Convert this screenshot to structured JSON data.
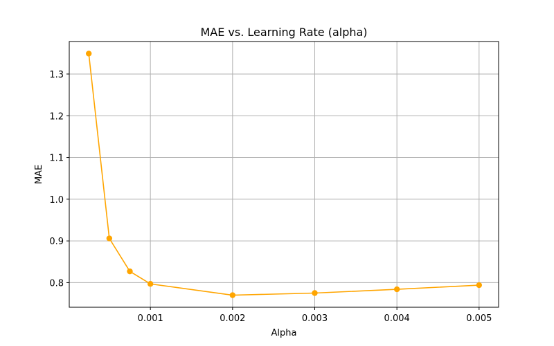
{
  "chart_data": {
    "type": "line",
    "title": "MAE vs. Learning Rate (alpha)",
    "xlabel": "Alpha",
    "ylabel": "MAE",
    "x": [
      0.00025,
      0.0005,
      0.00075,
      0.001,
      0.002,
      0.003,
      0.004,
      0.005
    ],
    "series": [
      {
        "name": "",
        "values": [
          1.349,
          0.906,
          0.827,
          0.797,
          0.77,
          0.775,
          0.784,
          0.794
        ]
      }
    ],
    "xticks": [
      0.001,
      0.002,
      0.003,
      0.004,
      0.005
    ],
    "xtick_labels": [
      "0.001",
      "0.002",
      "0.003",
      "0.004",
      "0.005"
    ],
    "yticks": [
      0.8,
      0.9,
      1.0,
      1.1,
      1.2,
      1.3
    ],
    "ytick_labels": [
      "0.8",
      "0.9",
      "1.0",
      "1.1",
      "1.2",
      "1.3"
    ],
    "xlim": [
      1.25e-05,
      0.0052375
    ],
    "ylim": [
      0.741,
      1.3779
    ],
    "grid": true,
    "legend": "none",
    "colors": {
      "line": "#FFA500",
      "grid": "#b0b0b0",
      "axes": "#000000"
    }
  }
}
